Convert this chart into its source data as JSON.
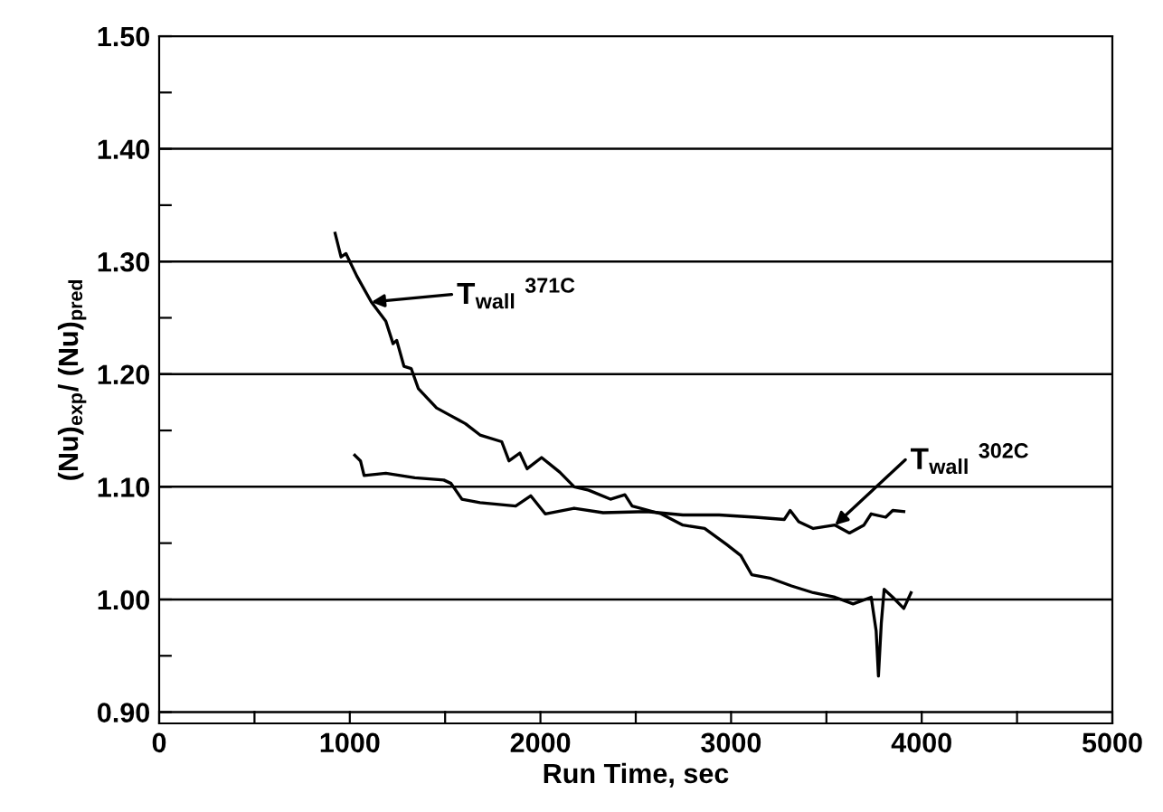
{
  "chart_data": {
    "type": "line",
    "xlabel": "Run Time, sec",
    "ylabel": "(Nu)$_{exp}$/ (Nu)$_{pred}$",
    "xlim": [
      0,
      5000
    ],
    "xticks": [
      0,
      {
        "value": 500,
        "label": null
      },
      1000,
      {
        "value": 1500,
        "label": null
      },
      2000,
      {
        "value": 2500,
        "label": null
      },
      3000,
      {
        "value": 3500,
        "label": null
      },
      4000,
      {
        "value": 4500,
        "label": null
      },
      5000
    ],
    "ylim": [
      0.89,
      1.5
    ],
    "yticks": [
      {
        "value": 0.9,
        "label": "0.90"
      },
      {
        "value": 0.95,
        "label": null
      },
      {
        "value": 1.0,
        "label": "1.00"
      },
      {
        "value": 1.05,
        "label": null
      },
      {
        "value": 1.1,
        "label": "1.10"
      },
      {
        "value": 1.15,
        "label": null
      },
      {
        "value": 1.2,
        "label": "1.20"
      },
      {
        "value": 1.25,
        "label": null
      },
      {
        "value": 1.3,
        "label": "1.30"
      },
      {
        "value": 1.35,
        "label": null
      },
      {
        "value": 1.4,
        "label": "1.40"
      },
      {
        "value": 1.45,
        "label": null
      },
      {
        "value": 1.5,
        "label": "1.50"
      }
    ],
    "grid": "y",
    "line_style": "solid",
    "series": [
      {
        "color": "#000000",
        "x": [
          923,
          954,
          980,
          1037,
          1113,
          1189,
          1227,
          1246,
          1284,
          1322,
          1360,
          1455,
          1531,
          1607,
          1683,
          1797,
          1835,
          1892,
          1930,
          2006,
          2101,
          2177,
          2253,
          2367,
          2443,
          2481,
          2633,
          2747,
          2861,
          2975,
          3051,
          3108,
          3203,
          3317,
          3431,
          3545,
          3640,
          3735,
          3761,
          3773,
          3788,
          3803,
          3848,
          3906,
          3944
        ],
        "values": [
          1.325,
          1.304,
          1.307,
          1.287,
          1.264,
          1.247,
          1.227,
          1.23,
          1.207,
          1.205,
          1.187,
          1.17,
          1.163,
          1.156,
          1.146,
          1.14,
          1.123,
          1.13,
          1.116,
          1.126,
          1.113,
          1.1,
          1.097,
          1.089,
          1.093,
          1.083,
          1.076,
          1.066,
          1.063,
          1.049,
          1.039,
          1.022,
          1.019,
          1.012,
          1.006,
          1.002,
          0.996,
          1.002,
          0.972,
          0.932,
          0.979,
          1.009,
          1.002,
          0.992,
          1.006
        ]
      },
      {
        "color": "#000000",
        "x": [
          1026,
          1056,
          1075,
          1189,
          1341,
          1493,
          1531,
          1588,
          1683,
          1870,
          1949,
          2025,
          2177,
          2329,
          2557,
          2747,
          2937,
          3127,
          3279,
          3310,
          3355,
          3431,
          3545,
          3621,
          3697,
          3735,
          3811,
          3848,
          3906
        ],
        "values": [
          1.128,
          1.123,
          1.11,
          1.112,
          1.108,
          1.106,
          1.103,
          1.089,
          1.086,
          1.083,
          1.092,
          1.076,
          1.081,
          1.077,
          1.078,
          1.075,
          1.075,
          1.073,
          1.071,
          1.079,
          1.069,
          1.063,
          1.066,
          1.059,
          1.066,
          1.076,
          1.073,
          1.079,
          1.078
        ]
      }
    ],
    "annotations": [
      {
        "text": "T$_{wall}$ $^{371C}$",
        "x": 1113,
        "y": 1.264
      },
      {
        "text": "T$_{wall}$ $^{302C}$",
        "x": 3545,
        "y": 1.066
      }
    ]
  }
}
